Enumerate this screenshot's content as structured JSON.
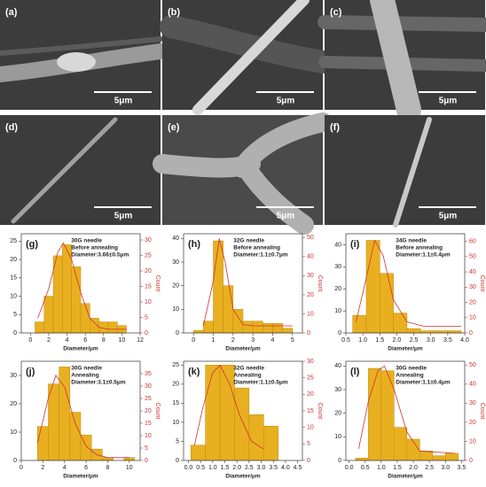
{
  "images": [
    {
      "label": "(a)",
      "scale": "5μm"
    },
    {
      "label": "(b)",
      "scale": "5μm"
    },
    {
      "label": "(c)",
      "scale": "5μm"
    },
    {
      "label": "(d)",
      "scale": "5μm"
    },
    {
      "label": "(e)",
      "scale": "5μm"
    },
    {
      "label": "(f)",
      "scale": "5μm"
    }
  ],
  "chart_data": [
    {
      "type": "histogram",
      "label": "(g)",
      "annotation": [
        "30G needle",
        "Before annealing",
        "Diameter:3.66±0.5μm"
      ],
      "x_label": "Diameter/μm",
      "y2_label": "Count",
      "color": "#e8b020",
      "fit_color": "#d03030",
      "bins": [
        0.5,
        1.5,
        2.5,
        3.5,
        4.5,
        5.5,
        6.5,
        7.5,
        8.5,
        9.5,
        10.5
      ],
      "counts": [
        3,
        10,
        21,
        24,
        18,
        8,
        4,
        3,
        3,
        2
      ],
      "fit": {
        "x": [
          0.8,
          2,
          3,
          3.6,
          4.5,
          5.5,
          6.5,
          7.5,
          8.5,
          10.5
        ],
        "values": [
          4,
          12,
          22,
          24.5,
          20,
          11,
          4,
          1.5,
          1,
          1
        ]
      },
      "xlim": [
        -1,
        12
      ],
      "xticks": [
        0,
        2,
        4,
        6,
        8,
        10,
        12
      ],
      "ylim": [
        0,
        27
      ],
      "yticks": [
        0,
        5,
        10,
        15,
        20,
        25
      ],
      "y2lim": [
        0,
        32
      ],
      "y2ticks": [
        0,
        5,
        10,
        15,
        20,
        25,
        30
      ]
    },
    {
      "type": "histogram",
      "label": "(h)",
      "annotation": [
        "32G needle",
        "Before annealing",
        "Diameter:1.1±0.7μm"
      ],
      "x_label": "Diameter/μm",
      "y2_label": "Count",
      "color": "#e8b020",
      "fit_color": "#d03030",
      "bins": [
        0,
        0.5,
        1,
        1.5,
        2,
        2.5,
        3,
        3.5,
        4,
        4.5,
        5
      ],
      "counts": [
        1,
        5,
        39,
        20,
        10,
        5,
        5,
        4,
        4,
        2
      ],
      "fit": {
        "x": [
          0.5,
          1,
          1.3,
          1.6,
          2,
          2.5,
          3,
          5
        ],
        "values": [
          3,
          22,
          40,
          30,
          10,
          3.5,
          3,
          3
        ]
      },
      "xlim": [
        -0.5,
        5.5
      ],
      "xticks": [
        0,
        1,
        2,
        3,
        4,
        5
      ],
      "ylim": [
        0,
        42
      ],
      "yticks": [
        0,
        10,
        20,
        30,
        40
      ],
      "y2lim": [
        0,
        52
      ],
      "y2ticks": [
        0,
        10,
        20,
        30,
        40,
        50
      ]
    },
    {
      "type": "histogram",
      "label": "(i)",
      "annotation": [
        "34G needle",
        "Before annealing",
        "Diameter:1.1±0.4μm"
      ],
      "x_label": "Diameter/μm",
      "y2_label": "Count",
      "color": "#e8b020",
      "fit_color": "#d03030",
      "bins": [
        0.7,
        1.1,
        1.5,
        1.9,
        2.3,
        2.7,
        3.1,
        3.5,
        3.9
      ],
      "counts": [
        8,
        42,
        27,
        9,
        2,
        1,
        1,
        1
      ],
      "fit": {
        "x": [
          0.8,
          1.1,
          1.35,
          1.6,
          1.9,
          2.3,
          2.8,
          3.9
        ],
        "values": [
          5,
          25,
          42,
          35,
          15,
          5,
          3,
          3
        ]
      },
      "xlim": [
        0.5,
        4
      ],
      "xticks": [
        0.5,
        {
          "value": 1,
          "label": "1.0"
        },
        1.5,
        {
          "value": 2,
          "label": "2.0"
        },
        2.5,
        {
          "value": 3,
          "label": "3.0"
        },
        3.5,
        {
          "value": 4,
          "label": "4.0"
        }
      ],
      "ylim": [
        0,
        45
      ],
      "yticks": [
        0,
        10,
        20,
        30,
        40
      ],
      "y2lim": [
        0,
        65
      ],
      "y2ticks": [
        0,
        10,
        20,
        30,
        40,
        50,
        60
      ]
    },
    {
      "type": "histogram",
      "label": "(j)",
      "annotation": [
        "30G needle",
        "Annealing",
        "Diameter:3.1±0.5μm"
      ],
      "x_label": "Diameter/μm",
      "y2_label": "Count",
      "color": "#e8b020",
      "fit_color": "#d03030",
      "bins": [
        1.5,
        2.5,
        3.5,
        4.5,
        5.5,
        6.5,
        7.5,
        8.5,
        9.5,
        10.5
      ],
      "counts": [
        12,
        27,
        33,
        17,
        9,
        4,
        1,
        0,
        1
      ],
      "fit": {
        "x": [
          1.5,
          2.5,
          3.2,
          4,
          5,
          6,
          7,
          8,
          10
        ],
        "values": [
          6,
          22,
          30,
          26,
          13,
          5,
          2,
          1,
          1
        ]
      },
      "xlim": [
        0,
        11
      ],
      "xticks": [
        0,
        2,
        4,
        6,
        8,
        10
      ],
      "ylim": [
        0,
        35
      ],
      "yticks": [
        0,
        10,
        20,
        30
      ],
      "y2lim": [
        0,
        40
      ],
      "y2ticks": [
        0,
        5,
        10,
        15,
        20,
        25,
        30,
        35
      ]
    },
    {
      "type": "histogram",
      "label": "(k)",
      "annotation": [
        "32G needle",
        "Annealing",
        "Diameter:1.1±0.5μm"
      ],
      "x_label": "Diameter/μm",
      "y2_label": "Count",
      "color": "#e8b020",
      "fit_color": "#d03030",
      "bins": [
        0.1,
        0.7,
        1.3,
        1.9,
        2.5,
        3.1,
        3.7
      ],
      "counts": [
        4,
        25,
        25,
        19,
        12,
        9
      ],
      "fit": {
        "x": [
          0.25,
          0.6,
          1,
          1.3,
          1.7,
          2.1,
          2.6,
          3.1
        ],
        "values": [
          4,
          14,
          23,
          25,
          20,
          12,
          5,
          3
        ]
      },
      "xlim": [
        -0.2,
        4.7
      ],
      "xticks": [
        {
          "value": 0,
          "label": "0.0"
        },
        0.5,
        {
          "value": 1,
          "label": "1.0"
        },
        1.5,
        {
          "value": 2,
          "label": "2.0"
        },
        2.5,
        {
          "value": 3,
          "label": "3.0"
        },
        3.5,
        {
          "value": 4,
          "label": "4.0"
        },
        4.5
      ],
      "ylim": [
        0,
        26
      ],
      "yticks": [
        0,
        5,
        10,
        15,
        20,
        25
      ],
      "y2lim": [
        0,
        30
      ],
      "y2ticks": [
        0,
        5,
        10,
        15,
        20,
        25,
        30
      ]
    },
    {
      "type": "histogram",
      "label": "(l)",
      "annotation": [
        "30G needle",
        "Annealing",
        "Diameter:1.1±0.4μm"
      ],
      "x_label": "Diameter/μm",
      "y2_label": "Count",
      "color": "#e8b020",
      "fit_color": "#d03030",
      "bins": [
        0.2,
        0.6,
        1,
        1.4,
        1.8,
        2.2,
        2.6,
        3,
        3.4
      ],
      "counts": [
        1,
        39,
        38,
        14,
        9,
        4,
        2,
        3
      ],
      "fit": {
        "x": [
          0.3,
          0.6,
          0.9,
          1.1,
          1.4,
          1.8,
          2.2,
          3.3
        ],
        "values": [
          5,
          25,
          38,
          40,
          30,
          12,
          4,
          3
        ]
      },
      "xlim": [
        -0.1,
        3.6
      ],
      "xticks": [
        {
          "value": 0,
          "label": "0.0"
        },
        0.5,
        {
          "value": 1,
          "label": "1.0"
        },
        1.5,
        {
          "value": 2,
          "label": "2.0"
        },
        2.5,
        {
          "value": 3,
          "label": "3.0"
        },
        3.5
      ],
      "ylim": [
        0,
        42
      ],
      "yticks": [
        0,
        10,
        20,
        30,
        40
      ],
      "y2lim": [
        0,
        52
      ],
      "y2ticks": [
        0,
        10,
        20,
        30,
        40,
        50
      ]
    }
  ]
}
